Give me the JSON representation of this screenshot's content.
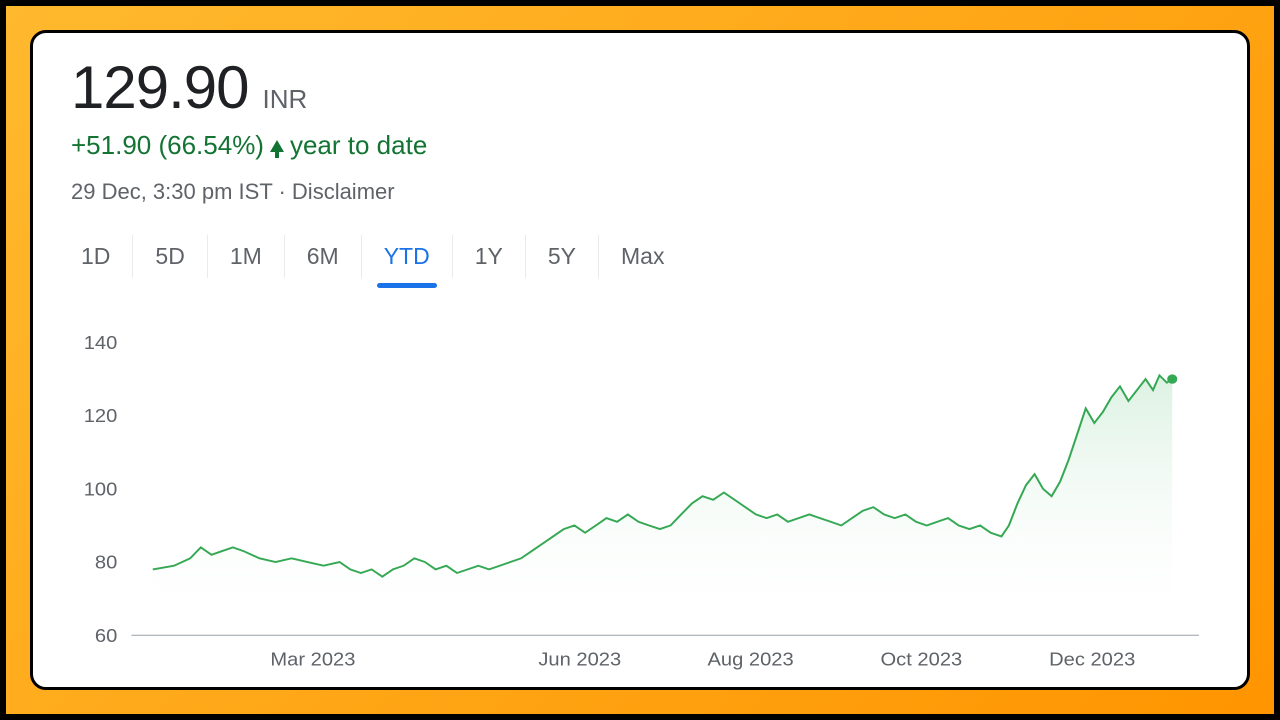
{
  "price": "129.90",
  "currency": "INR",
  "change": "+51.90 (66.54%)",
  "change_period": "year to date",
  "change_color": "#137333",
  "timestamp": "29 Dec, 3:30 pm IST · Disclaimer",
  "tabs": {
    "items": [
      "1D",
      "5D",
      "1M",
      "6M",
      "YTD",
      "1Y",
      "5Y",
      "Max"
    ],
    "active_index": 4,
    "active_color": "#1a73e8",
    "inactive_color": "#5f6368"
  },
  "chart": {
    "type": "line",
    "ylim": [
      60,
      140
    ],
    "ytick_step": 20,
    "yticks": [
      60,
      80,
      100,
      120,
      140
    ],
    "xticks": [
      "Mar 2023",
      "Jun 2023",
      "Aug 2023",
      "Oct 2023",
      "Dec 2023"
    ],
    "xtick_positions": [
      0.17,
      0.42,
      0.58,
      0.74,
      0.9
    ],
    "line_color": "#34a853",
    "area_gradient_top": "#d8f0df",
    "area_gradient_bottom": "#ffffff",
    "axis_color": "#9aa0a6",
    "label_color": "#5f6368",
    "label_fontsize": 20,
    "data": [
      [
        0.02,
        78
      ],
      [
        0.04,
        79
      ],
      [
        0.055,
        81
      ],
      [
        0.065,
        84
      ],
      [
        0.075,
        82
      ],
      [
        0.085,
        83
      ],
      [
        0.095,
        84
      ],
      [
        0.105,
        83
      ],
      [
        0.12,
        81
      ],
      [
        0.135,
        80
      ],
      [
        0.15,
        81
      ],
      [
        0.165,
        80
      ],
      [
        0.18,
        79
      ],
      [
        0.195,
        80
      ],
      [
        0.205,
        78
      ],
      [
        0.215,
        77
      ],
      [
        0.225,
        78
      ],
      [
        0.235,
        76
      ],
      [
        0.245,
        78
      ],
      [
        0.255,
        79
      ],
      [
        0.265,
        81
      ],
      [
        0.275,
        80
      ],
      [
        0.285,
        78
      ],
      [
        0.295,
        79
      ],
      [
        0.305,
        77
      ],
      [
        0.315,
        78
      ],
      [
        0.325,
        79
      ],
      [
        0.335,
        78
      ],
      [
        0.345,
        79
      ],
      [
        0.355,
        80
      ],
      [
        0.365,
        81
      ],
      [
        0.375,
        83
      ],
      [
        0.385,
        85
      ],
      [
        0.395,
        87
      ],
      [
        0.405,
        89
      ],
      [
        0.415,
        90
      ],
      [
        0.425,
        88
      ],
      [
        0.435,
        90
      ],
      [
        0.445,
        92
      ],
      [
        0.455,
        91
      ],
      [
        0.465,
        93
      ],
      [
        0.475,
        91
      ],
      [
        0.485,
        90
      ],
      [
        0.495,
        89
      ],
      [
        0.505,
        90
      ],
      [
        0.515,
        93
      ],
      [
        0.525,
        96
      ],
      [
        0.535,
        98
      ],
      [
        0.545,
        97
      ],
      [
        0.555,
        99
      ],
      [
        0.565,
        97
      ],
      [
        0.575,
        95
      ],
      [
        0.585,
        93
      ],
      [
        0.595,
        92
      ],
      [
        0.605,
        93
      ],
      [
        0.615,
        91
      ],
      [
        0.625,
        92
      ],
      [
        0.635,
        93
      ],
      [
        0.645,
        92
      ],
      [
        0.655,
        91
      ],
      [
        0.665,
        90
      ],
      [
        0.675,
        92
      ],
      [
        0.685,
        94
      ],
      [
        0.695,
        95
      ],
      [
        0.705,
        93
      ],
      [
        0.715,
        92
      ],
      [
        0.725,
        93
      ],
      [
        0.735,
        91
      ],
      [
        0.745,
        90
      ],
      [
        0.755,
        91
      ],
      [
        0.765,
        92
      ],
      [
        0.775,
        90
      ],
      [
        0.785,
        89
      ],
      [
        0.795,
        90
      ],
      [
        0.805,
        88
      ],
      [
        0.815,
        87
      ],
      [
        0.822,
        90
      ],
      [
        0.83,
        96
      ],
      [
        0.838,
        101
      ],
      [
        0.846,
        104
      ],
      [
        0.854,
        100
      ],
      [
        0.862,
        98
      ],
      [
        0.87,
        102
      ],
      [
        0.878,
        108
      ],
      [
        0.886,
        115
      ],
      [
        0.894,
        122
      ],
      [
        0.902,
        118
      ],
      [
        0.91,
        121
      ],
      [
        0.918,
        125
      ],
      [
        0.926,
        128
      ],
      [
        0.934,
        124
      ],
      [
        0.942,
        127
      ],
      [
        0.95,
        130
      ],
      [
        0.957,
        127
      ],
      [
        0.963,
        131
      ],
      [
        0.97,
        129
      ],
      [
        0.975,
        130
      ]
    ]
  },
  "frame": {
    "outer_border": "#000000",
    "gradient_start": "#ffb92e",
    "gradient_end": "#ff9500",
    "card_border": "#000000",
    "card_bg": "#ffffff"
  }
}
